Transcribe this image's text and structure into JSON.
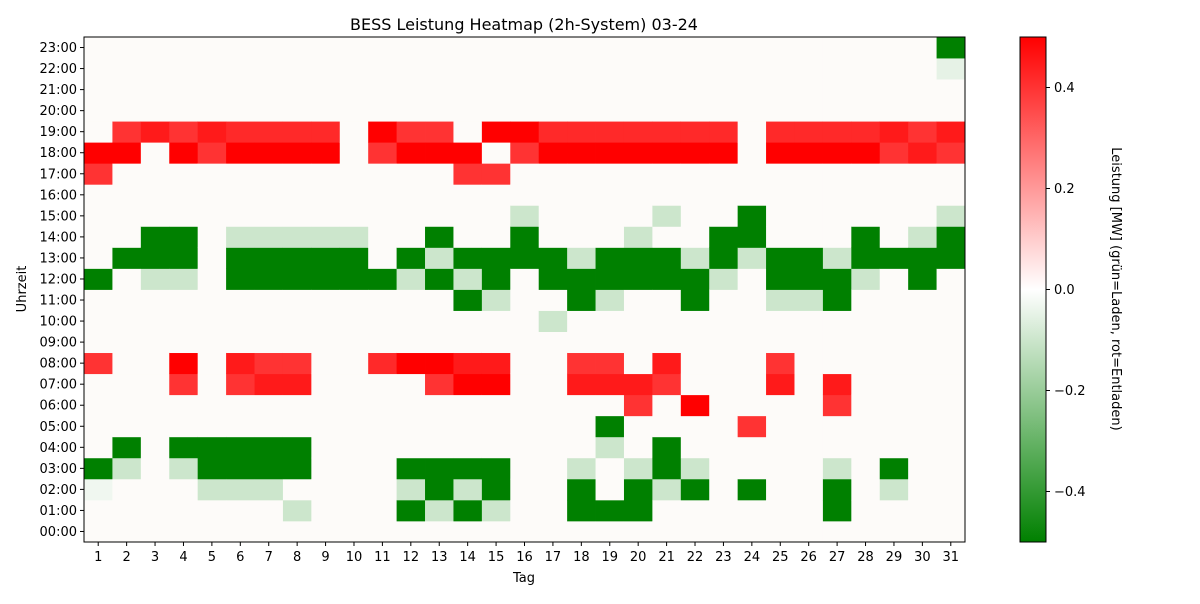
{
  "chart_data": {
    "type": "heatmap",
    "title": "BESS Leistung Heatmap (2h-System) 03-24",
    "xlabel": "Tag",
    "ylabel": "Uhrzeit",
    "x_categories": [
      "1",
      "2",
      "3",
      "4",
      "5",
      "6",
      "7",
      "8",
      "9",
      "10",
      "11",
      "12",
      "13",
      "14",
      "15",
      "16",
      "17",
      "18",
      "19",
      "20",
      "21",
      "22",
      "23",
      "24",
      "25",
      "26",
      "27",
      "28",
      "29",
      "30",
      "31"
    ],
    "y_categories": [
      "00:00",
      "01:00",
      "02:00",
      "03:00",
      "04:00",
      "05:00",
      "06:00",
      "07:00",
      "08:00",
      "09:00",
      "10:00",
      "11:00",
      "12:00",
      "13:00",
      "14:00",
      "15:00",
      "16:00",
      "17:00",
      "18:00",
      "19:00",
      "20:00",
      "21:00",
      "22:00",
      "23:00"
    ],
    "colorbar": {
      "label": "Leistung [MW] (grün=Laden, rot=Entladen)",
      "range": [
        -0.5,
        0.5
      ],
      "ticks": [
        -0.4,
        -0.2,
        0.0,
        0.2,
        0.4
      ],
      "tick_labels": [
        "−0.4",
        "−0.2",
        "0.0",
        "0.2",
        "0.4"
      ],
      "colors": {
        "negative": "#008000",
        "zero": "#ffffff",
        "positive": "#ff0000"
      }
    },
    "default_value": 0,
    "cells": [
      [
        "1",
        "17:00",
        0.4
      ],
      [
        "1",
        "18:00",
        0.5
      ],
      [
        "1",
        "08:00",
        0.4
      ],
      [
        "1",
        "12:00",
        -0.5
      ],
      [
        "1",
        "03:00",
        -0.5
      ],
      [
        "1",
        "02:00",
        -0.03
      ],
      [
        "2",
        "18:00",
        0.5
      ],
      [
        "2",
        "19:00",
        0.4
      ],
      [
        "2",
        "13:00",
        -0.5
      ],
      [
        "2",
        "04:00",
        -0.5
      ],
      [
        "2",
        "03:00",
        -0.1
      ],
      [
        "3",
        "19:00",
        0.45
      ],
      [
        "3",
        "14:00",
        -0.5
      ],
      [
        "3",
        "13:00",
        -0.5
      ],
      [
        "3",
        "12:00",
        -0.1
      ],
      [
        "4",
        "18:00",
        0.5
      ],
      [
        "4",
        "19:00",
        0.4
      ],
      [
        "4",
        "14:00",
        -0.5
      ],
      [
        "4",
        "13:00",
        -0.5
      ],
      [
        "4",
        "12:00",
        -0.1
      ],
      [
        "4",
        "08:00",
        0.5
      ],
      [
        "4",
        "07:00",
        0.4
      ],
      [
        "4",
        "04:00",
        -0.5
      ],
      [
        "4",
        "03:00",
        -0.1
      ],
      [
        "5",
        "18:00",
        0.4
      ],
      [
        "5",
        "19:00",
        0.45
      ],
      [
        "5",
        "04:00",
        -0.5
      ],
      [
        "5",
        "03:00",
        -0.5
      ],
      [
        "5",
        "02:00",
        -0.1
      ],
      [
        "6",
        "18:00",
        0.5
      ],
      [
        "6",
        "19:00",
        0.42
      ],
      [
        "6",
        "14:00",
        -0.1
      ],
      [
        "6",
        "13:00",
        -0.5
      ],
      [
        "6",
        "12:00",
        -0.5
      ],
      [
        "6",
        "08:00",
        0.45
      ],
      [
        "6",
        "07:00",
        0.4
      ],
      [
        "6",
        "04:00",
        -0.5
      ],
      [
        "6",
        "03:00",
        -0.5
      ],
      [
        "6",
        "02:00",
        -0.1
      ],
      [
        "7",
        "18:00",
        0.5
      ],
      [
        "7",
        "19:00",
        0.42
      ],
      [
        "7",
        "14:00",
        -0.1
      ],
      [
        "7",
        "13:00",
        -0.5
      ],
      [
        "7",
        "12:00",
        -0.5
      ],
      [
        "7",
        "08:00",
        0.4
      ],
      [
        "7",
        "07:00",
        0.45
      ],
      [
        "7",
        "04:00",
        -0.5
      ],
      [
        "7",
        "03:00",
        -0.5
      ],
      [
        "7",
        "02:00",
        -0.1
      ],
      [
        "8",
        "18:00",
        0.5
      ],
      [
        "8",
        "19:00",
        0.42
      ],
      [
        "8",
        "14:00",
        -0.1
      ],
      [
        "8",
        "13:00",
        -0.5
      ],
      [
        "8",
        "12:00",
        -0.5
      ],
      [
        "8",
        "08:00",
        0.4
      ],
      [
        "8",
        "07:00",
        0.45
      ],
      [
        "8",
        "04:00",
        -0.5
      ],
      [
        "8",
        "03:00",
        -0.5
      ],
      [
        "8",
        "01:00",
        -0.1
      ],
      [
        "9",
        "18:00",
        0.5
      ],
      [
        "9",
        "19:00",
        0.42
      ],
      [
        "9",
        "14:00",
        -0.1
      ],
      [
        "9",
        "13:00",
        -0.5
      ],
      [
        "9",
        "12:00",
        -0.5
      ],
      [
        "10",
        "14:00",
        -0.1
      ],
      [
        "10",
        "13:00",
        -0.5
      ],
      [
        "10",
        "12:00",
        -0.5
      ],
      [
        "11",
        "19:00",
        0.5
      ],
      [
        "11",
        "18:00",
        0.4
      ],
      [
        "11",
        "12:00",
        -0.5
      ],
      [
        "11",
        "08:00",
        0.42
      ],
      [
        "12",
        "19:00",
        0.4
      ],
      [
        "12",
        "18:00",
        0.5
      ],
      [
        "12",
        "13:00",
        -0.5
      ],
      [
        "12",
        "12:00",
        -0.1
      ],
      [
        "12",
        "08:00",
        0.5
      ],
      [
        "12",
        "03:00",
        -0.5
      ],
      [
        "12",
        "02:00",
        -0.1
      ],
      [
        "12",
        "01:00",
        -0.5
      ],
      [
        "13",
        "19:00",
        0.4
      ],
      [
        "13",
        "18:00",
        0.5
      ],
      [
        "13",
        "14:00",
        -0.5
      ],
      [
        "13",
        "13:00",
        -0.1
      ],
      [
        "13",
        "12:00",
        -0.5
      ],
      [
        "13",
        "08:00",
        0.5
      ],
      [
        "13",
        "07:00",
        0.4
      ],
      [
        "13",
        "03:00",
        -0.5
      ],
      [
        "13",
        "02:00",
        -0.5
      ],
      [
        "13",
        "01:00",
        -0.1
      ],
      [
        "14",
        "18:00",
        0.5
      ],
      [
        "14",
        "17:00",
        0.4
      ],
      [
        "14",
        "13:00",
        -0.5
      ],
      [
        "14",
        "12:00",
        -0.1
      ],
      [
        "14",
        "11:00",
        -0.5
      ],
      [
        "14",
        "08:00",
        0.45
      ],
      [
        "14",
        "07:00",
        0.5
      ],
      [
        "14",
        "03:00",
        -0.5
      ],
      [
        "14",
        "02:00",
        -0.1
      ],
      [
        "14",
        "01:00",
        -0.5
      ],
      [
        "15",
        "19:00",
        0.5
      ],
      [
        "15",
        "17:00",
        0.4
      ],
      [
        "15",
        "13:00",
        -0.5
      ],
      [
        "15",
        "12:00",
        -0.5
      ],
      [
        "15",
        "11:00",
        -0.1
      ],
      [
        "15",
        "08:00",
        0.45
      ],
      [
        "15",
        "07:00",
        0.5
      ],
      [
        "15",
        "03:00",
        -0.5
      ],
      [
        "15",
        "02:00",
        -0.5
      ],
      [
        "15",
        "01:00",
        -0.1
      ],
      [
        "16",
        "19:00",
        0.5
      ],
      [
        "16",
        "18:00",
        0.4
      ],
      [
        "16",
        "15:00",
        -0.1
      ],
      [
        "16",
        "14:00",
        -0.5
      ],
      [
        "16",
        "13:00",
        -0.5
      ],
      [
        "17",
        "19:00",
        0.42
      ],
      [
        "17",
        "18:00",
        0.5
      ],
      [
        "17",
        "13:00",
        -0.5
      ],
      [
        "17",
        "12:00",
        -0.5
      ],
      [
        "17",
        "10:00",
        -0.1
      ],
      [
        "18",
        "19:00",
        0.42
      ],
      [
        "18",
        "18:00",
        0.5
      ],
      [
        "18",
        "13:00",
        -0.1
      ],
      [
        "18",
        "12:00",
        -0.5
      ],
      [
        "18",
        "11:00",
        -0.5
      ],
      [
        "18",
        "08:00",
        0.4
      ],
      [
        "18",
        "07:00",
        0.45
      ],
      [
        "18",
        "03:00",
        -0.1
      ],
      [
        "18",
        "02:00",
        -0.5
      ],
      [
        "18",
        "01:00",
        -0.5
      ],
      [
        "19",
        "19:00",
        0.42
      ],
      [
        "19",
        "18:00",
        0.5
      ],
      [
        "19",
        "13:00",
        -0.5
      ],
      [
        "19",
        "12:00",
        -0.5
      ],
      [
        "19",
        "11:00",
        -0.1
      ],
      [
        "19",
        "08:00",
        0.4
      ],
      [
        "19",
        "07:00",
        0.45
      ],
      [
        "19",
        "05:00",
        -0.5
      ],
      [
        "19",
        "04:00",
        -0.1
      ],
      [
        "19",
        "01:00",
        -0.5
      ],
      [
        "20",
        "19:00",
        0.42
      ],
      [
        "20",
        "18:00",
        0.5
      ],
      [
        "20",
        "14:00",
        -0.1
      ],
      [
        "20",
        "13:00",
        -0.5
      ],
      [
        "20",
        "12:00",
        -0.5
      ],
      [
        "20",
        "07:00",
        0.45
      ],
      [
        "20",
        "06:00",
        0.4
      ],
      [
        "20",
        "03:00",
        -0.1
      ],
      [
        "20",
        "02:00",
        -0.5
      ],
      [
        "20",
        "01:00",
        -0.5
      ],
      [
        "21",
        "19:00",
        0.42
      ],
      [
        "21",
        "18:00",
        0.5
      ],
      [
        "21",
        "15:00",
        -0.1
      ],
      [
        "21",
        "13:00",
        -0.5
      ],
      [
        "21",
        "12:00",
        -0.5
      ],
      [
        "21",
        "08:00",
        0.45
      ],
      [
        "21",
        "07:00",
        0.4
      ],
      [
        "21",
        "04:00",
        -0.5
      ],
      [
        "21",
        "03:00",
        -0.5
      ],
      [
        "21",
        "02:00",
        -0.1
      ],
      [
        "22",
        "19:00",
        0.42
      ],
      [
        "22",
        "18:00",
        0.5
      ],
      [
        "22",
        "13:00",
        -0.1
      ],
      [
        "22",
        "12:00",
        -0.5
      ],
      [
        "22",
        "11:00",
        -0.5
      ],
      [
        "22",
        "06:00",
        0.5
      ],
      [
        "22",
        "03:00",
        -0.1
      ],
      [
        "22",
        "02:00",
        -0.5
      ],
      [
        "23",
        "19:00",
        0.42
      ],
      [
        "23",
        "18:00",
        0.5
      ],
      [
        "23",
        "14:00",
        -0.5
      ],
      [
        "23",
        "13:00",
        -0.5
      ],
      [
        "23",
        "12:00",
        -0.1
      ],
      [
        "24",
        "15:00",
        -0.5
      ],
      [
        "24",
        "14:00",
        -0.5
      ],
      [
        "24",
        "13:00",
        -0.1
      ],
      [
        "24",
        "05:00",
        0.4
      ],
      [
        "24",
        "02:00",
        -0.5
      ],
      [
        "25",
        "19:00",
        0.42
      ],
      [
        "25",
        "18:00",
        0.5
      ],
      [
        "25",
        "13:00",
        -0.5
      ],
      [
        "25",
        "12:00",
        -0.5
      ],
      [
        "25",
        "11:00",
        -0.1
      ],
      [
        "25",
        "08:00",
        0.4
      ],
      [
        "25",
        "07:00",
        0.45
      ],
      [
        "26",
        "19:00",
        0.42
      ],
      [
        "26",
        "18:00",
        0.5
      ],
      [
        "26",
        "13:00",
        -0.5
      ],
      [
        "26",
        "12:00",
        -0.5
      ],
      [
        "26",
        "11:00",
        -0.1
      ],
      [
        "27",
        "19:00",
        0.42
      ],
      [
        "27",
        "18:00",
        0.5
      ],
      [
        "27",
        "13:00",
        -0.1
      ],
      [
        "27",
        "12:00",
        -0.5
      ],
      [
        "27",
        "11:00",
        -0.5
      ],
      [
        "27",
        "07:00",
        0.45
      ],
      [
        "27",
        "06:00",
        0.4
      ],
      [
        "27",
        "03:00",
        -0.1
      ],
      [
        "27",
        "02:00",
        -0.5
      ],
      [
        "27",
        "01:00",
        -0.5
      ],
      [
        "28",
        "19:00",
        0.42
      ],
      [
        "28",
        "18:00",
        0.5
      ],
      [
        "28",
        "14:00",
        -0.5
      ],
      [
        "28",
        "13:00",
        -0.5
      ],
      [
        "28",
        "12:00",
        -0.1
      ],
      [
        "29",
        "19:00",
        0.45
      ],
      [
        "29",
        "18:00",
        0.4
      ],
      [
        "29",
        "13:00",
        -0.5
      ],
      [
        "29",
        "03:00",
        -0.5
      ],
      [
        "29",
        "02:00",
        -0.1
      ],
      [
        "30",
        "19:00",
        0.4
      ],
      [
        "30",
        "18:00",
        0.45
      ],
      [
        "30",
        "14:00",
        -0.1
      ],
      [
        "30",
        "13:00",
        -0.5
      ],
      [
        "30",
        "12:00",
        -0.5
      ],
      [
        "31",
        "23:00",
        -0.5
      ],
      [
        "31",
        "22:00",
        -0.05
      ],
      [
        "31",
        "19:00",
        0.45
      ],
      [
        "31",
        "18:00",
        0.4
      ],
      [
        "31",
        "15:00",
        -0.1
      ],
      [
        "31",
        "14:00",
        -0.5
      ],
      [
        "31",
        "13:00",
        -0.5
      ]
    ]
  }
}
